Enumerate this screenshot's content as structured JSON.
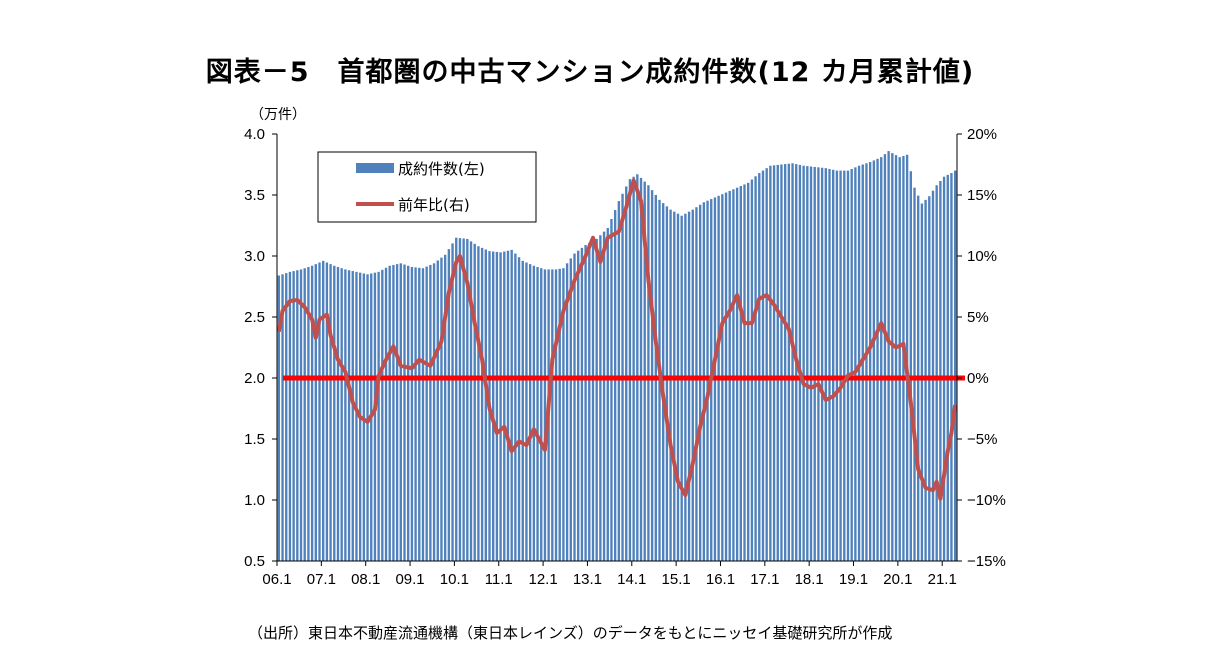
{
  "title": "図表－5　首都圏の中古マンション成約件数(12 カ月累計値)",
  "source": "（出所）東日本不動産流通機構（東日本レインズ）のデータをもとにニッセイ基礎研究所が作成",
  "colors": {
    "bars": "#4f81bd",
    "line": "#c0504d",
    "zero_line": "#ff0000"
  },
  "chart_data": {
    "type": "bar",
    "y_left_unit": "（万件）",
    "y_left_ticks": [
      "4.0",
      "3.5",
      "3.0",
      "2.5",
      "2.0",
      "1.5",
      "1.0",
      "0.5"
    ],
    "y_right_ticks": [
      "20%",
      "15%",
      "10%",
      "5%",
      "0%",
      "−5%",
      "−10%",
      "−15%"
    ],
    "x_ticks": [
      "06.1",
      "07.1",
      "08.1",
      "09.1",
      "10.1",
      "11.1",
      "12.1",
      "13.1",
      "14.1",
      "15.1",
      "16.1",
      "17.1",
      "18.1",
      "19.1",
      "20.1",
      "21.1"
    ],
    "ylim_left": [
      0.5,
      4.0
    ],
    "ylim_right": [
      -15,
      20
    ],
    "x_start": "2006-01",
    "grid": false,
    "legend_position": "top-left",
    "series": [
      {
        "name": "成約件数(左)",
        "type": "bar",
        "axis": "left",
        "anchors": [
          [
            "2006-01",
            2.84
          ],
          [
            "2006-04",
            2.87
          ],
          [
            "2006-07",
            2.89
          ],
          [
            "2006-10",
            2.92
          ],
          [
            "2007-01",
            2.96
          ],
          [
            "2007-04",
            2.92
          ],
          [
            "2007-07",
            2.89
          ],
          [
            "2007-10",
            2.87
          ],
          [
            "2008-01",
            2.85
          ],
          [
            "2008-04",
            2.87
          ],
          [
            "2008-07",
            2.92
          ],
          [
            "2008-10",
            2.94
          ],
          [
            "2009-01",
            2.91
          ],
          [
            "2009-04",
            2.9
          ],
          [
            "2009-07",
            2.94
          ],
          [
            "2009-10",
            3.01
          ],
          [
            "2010-01",
            3.15
          ],
          [
            "2010-04",
            3.14
          ],
          [
            "2010-07",
            3.08
          ],
          [
            "2010-10",
            3.04
          ],
          [
            "2011-01",
            3.03
          ],
          [
            "2011-04",
            3.05
          ],
          [
            "2011-07",
            2.96
          ],
          [
            "2011-10",
            2.92
          ],
          [
            "2012-01",
            2.89
          ],
          [
            "2012-04",
            2.89
          ],
          [
            "2012-06",
            2.9
          ],
          [
            "2012-09",
            3.02
          ],
          [
            "2012-12",
            3.09
          ],
          [
            "2013-03",
            3.14
          ],
          [
            "2013-06",
            3.23
          ],
          [
            "2013-09",
            3.45
          ],
          [
            "2013-12",
            3.63
          ],
          [
            "2014-02",
            3.67
          ],
          [
            "2014-05",
            3.58
          ],
          [
            "2014-08",
            3.46
          ],
          [
            "2014-11",
            3.38
          ],
          [
            "2015-02",
            3.33
          ],
          [
            "2015-05",
            3.38
          ],
          [
            "2015-08",
            3.44
          ],
          [
            "2015-11",
            3.48
          ],
          [
            "2016-02",
            3.52
          ],
          [
            "2016-05",
            3.56
          ],
          [
            "2016-08",
            3.6
          ],
          [
            "2016-11",
            3.68
          ],
          [
            "2017-02",
            3.74
          ],
          [
            "2017-05",
            3.75
          ],
          [
            "2017-08",
            3.76
          ],
          [
            "2017-11",
            3.74
          ],
          [
            "2018-02",
            3.73
          ],
          [
            "2018-05",
            3.72
          ],
          [
            "2018-08",
            3.7
          ],
          [
            "2018-11",
            3.7
          ],
          [
            "2019-02",
            3.74
          ],
          [
            "2019-05",
            3.77
          ],
          [
            "2019-08",
            3.81
          ],
          [
            "2019-10",
            3.86
          ],
          [
            "2020-01",
            3.81
          ],
          [
            "2020-03",
            3.83
          ],
          [
            "2020-05",
            3.56
          ],
          [
            "2020-07",
            3.43
          ],
          [
            "2020-09",
            3.49
          ],
          [
            "2020-11",
            3.58
          ],
          [
            "2021-01",
            3.65
          ],
          [
            "2021-03",
            3.68
          ],
          [
            "2021-04",
            3.7
          ]
        ]
      },
      {
        "name": "前年比(右)",
        "type": "line",
        "axis": "right",
        "anchors": [
          [
            "2006-01",
            3.8
          ],
          [
            "2006-02",
            5.5
          ],
          [
            "2006-04",
            6.3
          ],
          [
            "2006-06",
            6.4
          ],
          [
            "2006-08",
            5.8
          ],
          [
            "2006-10",
            4.8
          ],
          [
            "2006-11",
            3.3
          ],
          [
            "2006-12",
            4.8
          ],
          [
            "2007-02",
            5.2
          ],
          [
            "2007-03",
            3.5
          ],
          [
            "2007-05",
            1.5
          ],
          [
            "2007-07",
            0.5
          ],
          [
            "2007-09",
            -2.0
          ],
          [
            "2007-11",
            -3.2
          ],
          [
            "2008-01",
            -3.6
          ],
          [
            "2008-03",
            -2.6
          ],
          [
            "2008-04",
            0.2
          ],
          [
            "2008-06",
            1.5
          ],
          [
            "2008-08",
            2.6
          ],
          [
            "2008-10",
            1.0
          ],
          [
            "2009-01",
            0.8
          ],
          [
            "2009-03",
            1.5
          ],
          [
            "2009-06",
            1.0
          ],
          [
            "2009-09",
            3.0
          ],
          [
            "2009-11",
            7.0
          ],
          [
            "2010-01",
            9.5
          ],
          [
            "2010-02",
            10.0
          ],
          [
            "2010-04",
            7.8
          ],
          [
            "2010-06",
            4.5
          ],
          [
            "2010-08",
            1.5
          ],
          [
            "2010-10",
            -2.5
          ],
          [
            "2010-12",
            -4.5
          ],
          [
            "2011-02",
            -4.0
          ],
          [
            "2011-04",
            -6.0
          ],
          [
            "2011-06",
            -5.2
          ],
          [
            "2011-08",
            -5.5
          ],
          [
            "2011-10",
            -4.2
          ],
          [
            "2012-01",
            -5.9
          ],
          [
            "2012-03",
            1.5
          ],
          [
            "2012-06",
            5.5
          ],
          [
            "2012-09",
            8.0
          ],
          [
            "2012-12",
            10.0
          ],
          [
            "2013-02",
            11.5
          ],
          [
            "2013-04",
            9.5
          ],
          [
            "2013-06",
            11.5
          ],
          [
            "2013-09",
            12.0
          ],
          [
            "2013-11",
            14.0
          ],
          [
            "2014-01",
            16.2
          ],
          [
            "2014-03",
            14.5
          ],
          [
            "2014-05",
            8.0
          ],
          [
            "2014-07",
            3.0
          ],
          [
            "2014-09",
            -1.5
          ],
          [
            "2014-11",
            -5.5
          ],
          [
            "2015-01",
            -8.5
          ],
          [
            "2015-03",
            -9.6
          ],
          [
            "2015-05",
            -7.0
          ],
          [
            "2015-07",
            -4.0
          ],
          [
            "2015-09",
            -1.5
          ],
          [
            "2015-11",
            1.5
          ],
          [
            "2016-01",
            4.5
          ],
          [
            "2016-03",
            5.5
          ],
          [
            "2016-05",
            6.8
          ],
          [
            "2016-07",
            4.5
          ],
          [
            "2016-09",
            4.5
          ],
          [
            "2016-11",
            6.5
          ],
          [
            "2017-01",
            6.8
          ],
          [
            "2017-03",
            6.0
          ],
          [
            "2017-05",
            5.0
          ],
          [
            "2017-07",
            4.0
          ],
          [
            "2017-09",
            1.5
          ],
          [
            "2017-11",
            -0.5
          ],
          [
            "2018-01",
            -0.8
          ],
          [
            "2018-03",
            -0.5
          ],
          [
            "2018-05",
            -1.8
          ],
          [
            "2018-07",
            -1.5
          ],
          [
            "2018-09",
            -0.8
          ],
          [
            "2018-11",
            0.2
          ],
          [
            "2019-01",
            0.5
          ],
          [
            "2019-03",
            1.5
          ],
          [
            "2019-05",
            2.5
          ],
          [
            "2019-08",
            4.5
          ],
          [
            "2019-10",
            3.0
          ],
          [
            "2019-12",
            2.5
          ],
          [
            "2020-02",
            2.8
          ],
          [
            "2020-04",
            -2.0
          ],
          [
            "2020-06",
            -7.5
          ],
          [
            "2020-08",
            -9.0
          ],
          [
            "2020-10",
            -9.2
          ],
          [
            "2020-11",
            -8.5
          ],
          [
            "2020-12",
            -9.9
          ],
          [
            "2021-02",
            -6.0
          ],
          [
            "2021-03",
            -4.5
          ],
          [
            "2021-04",
            -2.2
          ]
        ]
      }
    ],
    "zero_line_value": 0
  }
}
